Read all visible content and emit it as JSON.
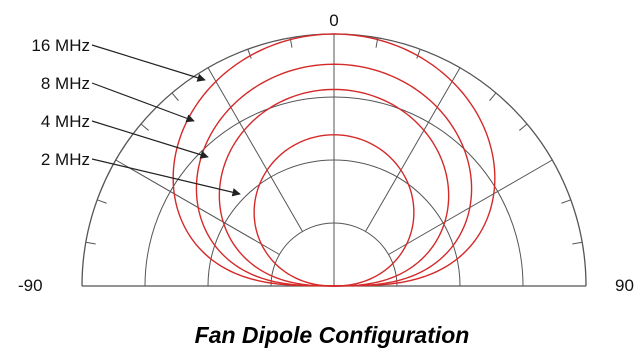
{
  "chart_data": {
    "type": "polar",
    "title": "Fan Dipole Configuration",
    "angle_tick_labels": [
      "-90",
      "0",
      "90"
    ],
    "angle_range": [
      -90,
      90
    ],
    "radial_rings": 4,
    "spoke_step_deg": 30,
    "series": [
      {
        "name": "16 MHz",
        "max_relative_radius": 1.0
      },
      {
        "name": "8 MHz",
        "max_relative_radius": 0.88
      },
      {
        "name": "4 MHz",
        "max_relative_radius": 0.78
      },
      {
        "name": "2 MHz",
        "max_relative_radius": 0.6
      }
    ],
    "legend_placement": "left",
    "colors": {
      "pattern": "#d42a2a",
      "grid": "#555555",
      "arrow": "#222222"
    }
  }
}
